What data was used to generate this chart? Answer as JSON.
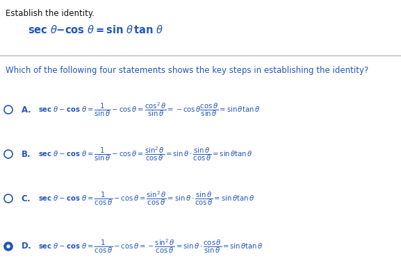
{
  "background_color": "#ffffff",
  "title_text": "Establish the identity.",
  "title_color": "#111111",
  "identity_color": "#2255bb",
  "question_color": "#2255bb",
  "option_color": "#2255bb",
  "selected": "D",
  "figsize": [
    5.77,
    3.89
  ],
  "dpi": 100
}
